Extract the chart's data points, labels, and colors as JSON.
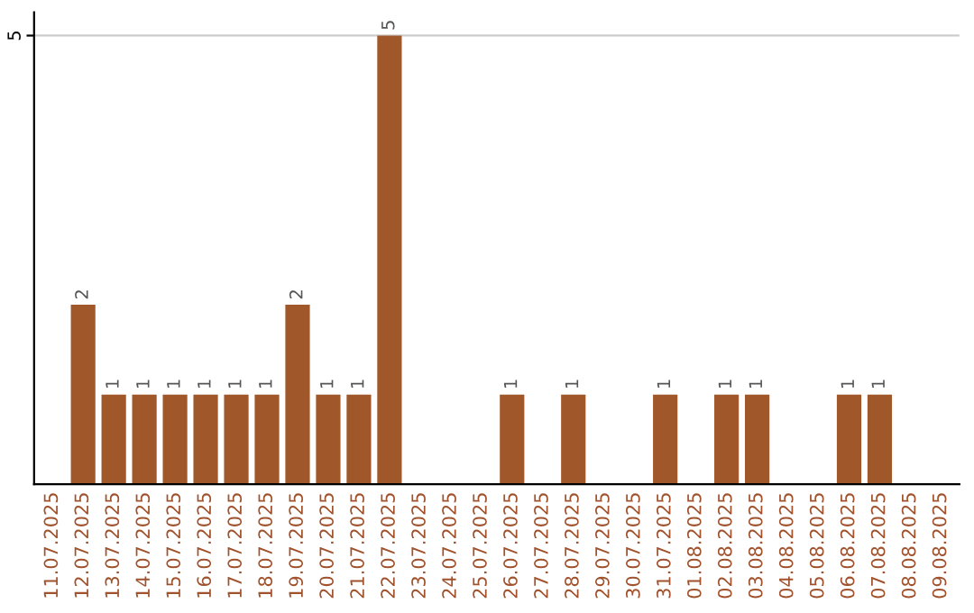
{
  "chart_data": {
    "type": "bar",
    "categories": [
      "11.07.2025",
      "12.07.2025",
      "13.07.2025",
      "14.07.2025",
      "15.07.2025",
      "16.07.2025",
      "17.07.2025",
      "18.07.2025",
      "19.07.2025",
      "20.07.2025",
      "21.07.2025",
      "22.07.2025",
      "23.07.2025",
      "24.07.2025",
      "25.07.2025",
      "26.07.2025",
      "27.07.2025",
      "28.07.2025",
      "29.07.2025",
      "30.07.2025",
      "31.07.2025",
      "01.08.2025",
      "02.08.2025",
      "03.08.2025",
      "04.08.2025",
      "05.08.2025",
      "06.08.2025",
      "07.08.2025",
      "08.08.2025",
      "09.08.2025"
    ],
    "values": [
      0,
      2,
      1,
      1,
      1,
      1,
      1,
      1,
      2,
      1,
      1,
      5,
      0,
      0,
      0,
      1,
      0,
      1,
      0,
      0,
      1,
      0,
      1,
      1,
      0,
      0,
      1,
      1,
      0,
      0
    ],
    "value_labels": [
      null,
      "2",
      "1",
      "1",
      "1",
      "1",
      "1",
      "1",
      "2",
      "1",
      "1",
      "5",
      null,
      null,
      null,
      "1",
      null,
      "1",
      null,
      null,
      "1",
      null,
      "1",
      "1",
      null,
      null,
      "1",
      "1",
      null,
      null
    ],
    "color": "#a0572a",
    "ylim": [
      0,
      5.26
    ],
    "yticks": [
      5
    ],
    "grid": "y"
  }
}
